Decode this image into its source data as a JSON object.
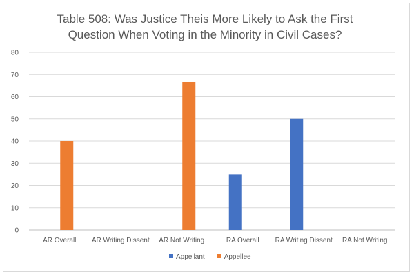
{
  "chart_data": {
    "type": "bar",
    "title_lines": [
      "Table 508: Was Justice Theis More Likely to Ask the First",
      "Question When Voting in the Minority in Civil Cases?"
    ],
    "categories": [
      "AR Overall",
      "AR Writing Dissent",
      "AR Not Writing",
      "RA Overall",
      "RA Writing Dissent",
      "RA Not Writing"
    ],
    "series": [
      {
        "name": "Appellant",
        "color": "#4472C4",
        "values": [
          0,
          0,
          0,
          25,
          50,
          0
        ]
      },
      {
        "name": "Appellee",
        "color": "#ED7D31",
        "values": [
          40,
          0,
          66.67,
          0,
          0,
          0
        ]
      }
    ],
    "ylim": [
      0,
      80
    ],
    "yticks": [
      0,
      10,
      20,
      30,
      40,
      50,
      60,
      70,
      80
    ],
    "grid": true,
    "legend_position": "bottom"
  }
}
